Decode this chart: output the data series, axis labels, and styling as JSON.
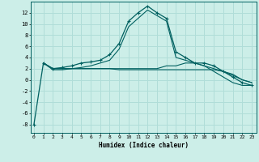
{
  "xlabel": "Humidex (Indice chaleur)",
  "bg_color": "#cceee8",
  "grid_color": "#b0ddd8",
  "line_color": "#006060",
  "x_ticks": [
    0,
    1,
    2,
    3,
    4,
    5,
    6,
    7,
    8,
    9,
    10,
    11,
    12,
    13,
    14,
    15,
    16,
    17,
    18,
    19,
    20,
    21,
    22,
    23
  ],
  "y_ticks": [
    -8,
    -6,
    -4,
    -2,
    0,
    2,
    4,
    6,
    8,
    10,
    12
  ],
  "ylim": [
    -9.5,
    14.0
  ],
  "xlim": [
    -0.3,
    23.5
  ],
  "series1_x": [
    0,
    1,
    2,
    3,
    4,
    5,
    6,
    7,
    8,
    9,
    10,
    11,
    12,
    13,
    14,
    15,
    16,
    17,
    18,
    19,
    20,
    21,
    22,
    23
  ],
  "series1_y": [
    -8,
    3,
    2,
    2.2,
    2.5,
    3.0,
    3.2,
    3.5,
    4.5,
    6.5,
    10.5,
    12.0,
    13.2,
    12.0,
    11.0,
    5.0,
    4.0,
    3.0,
    3.0,
    2.5,
    1.5,
    0.5,
    -0.5,
    -1.0
  ],
  "series2_x": [
    1,
    2,
    3,
    4,
    5,
    6,
    7,
    8,
    9,
    10,
    11,
    12,
    13,
    14,
    15,
    16,
    17,
    18,
    19,
    20,
    21,
    22,
    23
  ],
  "series2_y": [
    3,
    1.8,
    1.8,
    2.0,
    2.2,
    2.5,
    3.0,
    3.5,
    5.5,
    9.5,
    11.0,
    12.5,
    11.5,
    10.5,
    4.0,
    3.5,
    3.0,
    2.5,
    1.5,
    0.5,
    -0.5,
    -1.0,
    -1.0
  ],
  "series3_x": [
    1,
    2,
    3,
    4,
    5,
    6,
    7,
    8,
    9,
    10,
    11,
    12,
    13,
    14,
    15,
    16,
    17,
    18,
    19,
    20,
    21,
    22,
    23
  ],
  "series3_y": [
    3,
    2.0,
    2.0,
    2.0,
    2.0,
    2.0,
    2.0,
    2.0,
    2.0,
    2.0,
    2.0,
    2.0,
    2.0,
    2.5,
    2.5,
    3.0,
    3.0,
    2.5,
    2.0,
    1.5,
    1.0,
    0.0,
    -0.5
  ],
  "series4_x": [
    1,
    2,
    3,
    4,
    5,
    6,
    7,
    8,
    9,
    10,
    11,
    12,
    13,
    14,
    15,
    16,
    17,
    18,
    19,
    20,
    21,
    22,
    23
  ],
  "series4_y": [
    3,
    2.0,
    2.0,
    2.0,
    2.0,
    2.0,
    2.0,
    2.0,
    1.8,
    1.8,
    1.8,
    1.8,
    1.8,
    1.8,
    1.8,
    1.8,
    1.8,
    1.8,
    1.8,
    1.5,
    0.8,
    0.0,
    -0.5
  ]
}
